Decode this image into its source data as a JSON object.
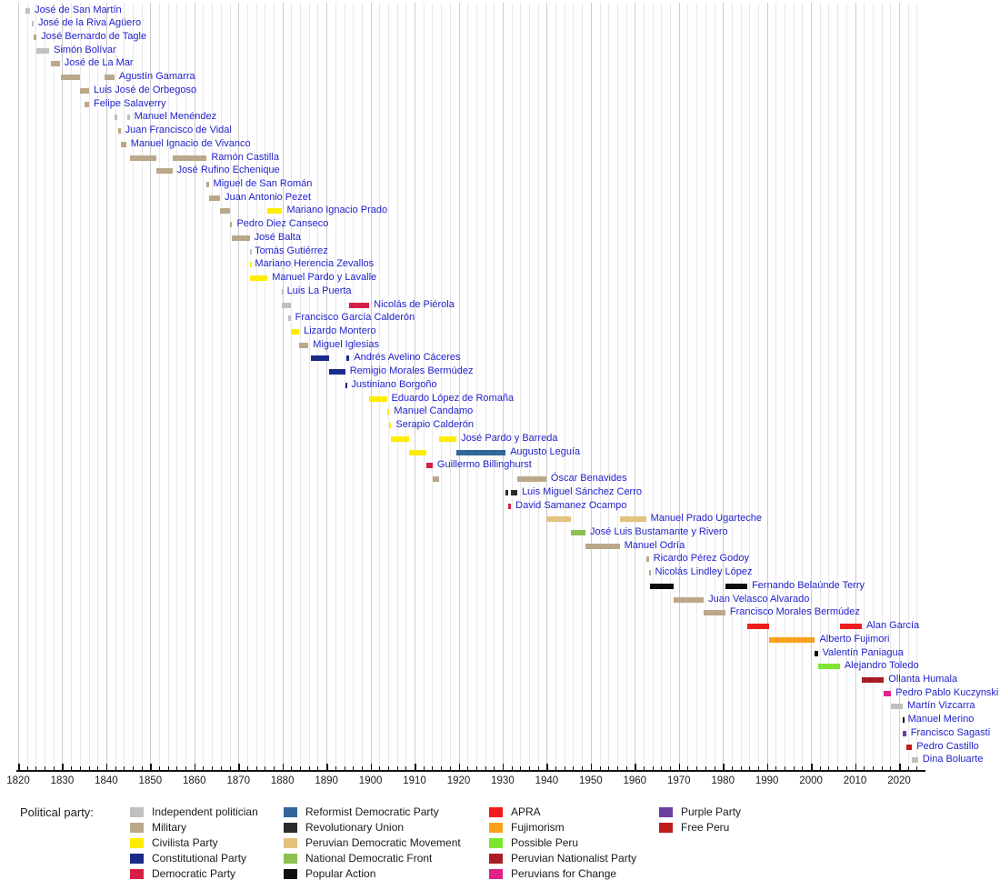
{
  "chart_data": {
    "type": "bar",
    "subtype": "timeline-gantt",
    "title": "",
    "axis": {
      "min_year": 1820,
      "max_year": 2026,
      "minor_tick_step": 2,
      "major_tick_step": 10,
      "decade_labels": [
        "1820",
        "1830",
        "1840",
        "1850",
        "1860",
        "1870",
        "1880",
        "1890",
        "1900",
        "1910",
        "1920",
        "1930",
        "1940",
        "1950",
        "1960",
        "1970",
        "1980",
        "1990",
        "2000",
        "2010",
        "2020"
      ],
      "grid": true
    },
    "label_color": "#2222cc",
    "parties": {
      "independent": {
        "label": "Independent politician",
        "color": "#C0C0C0"
      },
      "military": {
        "label": "Military",
        "color": "#BBA88A"
      },
      "civilista": {
        "label": "Civilista Party",
        "color": "#FFEC00"
      },
      "constitutional": {
        "label": "Constitutional Party",
        "color": "#1A2B8C"
      },
      "democratic": {
        "label": "Democratic Party",
        "color": "#D42047"
      },
      "reformist": {
        "label": "Reformist Democratic Party",
        "color": "#33669A"
      },
      "revolutionary_union": {
        "label": "Revolutionary Union",
        "color": "#2B2B2B"
      },
      "pdm": {
        "label": "Peruvian Democratic Movement",
        "color": "#E2C27E"
      },
      "ndf": {
        "label": "National Democratic Front",
        "color": "#8CC152"
      },
      "popular_action": {
        "label": "Popular Action",
        "color": "#0D0D0D"
      },
      "apra": {
        "label": "APRA",
        "color": "#EE1C1C"
      },
      "fujimorism": {
        "label": "Fujimorism",
        "color": "#F9A11B"
      },
      "possible_peru": {
        "label": "Possible Peru",
        "color": "#7DE52F"
      },
      "nationalist": {
        "label": "Peruvian Nationalist Party",
        "color": "#A81E24"
      },
      "peruvians_change": {
        "label": "Peruvians for Change",
        "color": "#E0218A"
      },
      "purple": {
        "label": "Purple Party",
        "color": "#6B3FA0"
      },
      "free_peru": {
        "label": "Free Peru",
        "color": "#BE1B1B"
      }
    },
    "legend": {
      "title": "Political party:",
      "columns": [
        [
          "independent",
          "military",
          "civilista",
          "constitutional",
          "democratic"
        ],
        [
          "reformist",
          "revolutionary_union",
          "pdm",
          "ndf",
          "popular_action"
        ],
        [
          "apra",
          "fujimorism",
          "possible_peru",
          "nationalist",
          "peruvians_change"
        ],
        [
          "purple",
          "free_peru"
        ]
      ]
    },
    "presidents": [
      {
        "name": "José de San Martín",
        "terms": [
          [
            1821.55,
            1822.72,
            "independent"
          ]
        ]
      },
      {
        "name": "José de la Riva Agüero",
        "terms": [
          [
            1823.15,
            1823.5,
            "independent"
          ]
        ]
      },
      {
        "name": "José Bernardo de Tagle",
        "terms": [
          [
            1823.6,
            1824.15,
            "military"
          ]
        ]
      },
      {
        "name": "Simón Bolívar",
        "terms": [
          [
            1824.1,
            1827.05,
            "independent"
          ]
        ]
      },
      {
        "name": "José de La Mar",
        "terms": [
          [
            1827.45,
            1829.45,
            "military"
          ]
        ]
      },
      {
        "name": "Agustín Gamarra",
        "terms": [
          [
            1829.65,
            1833.95,
            "military"
          ],
          [
            1839.6,
            1841.85,
            "military"
          ]
        ]
      },
      {
        "name": "Luis José de Orbegoso",
        "terms": [
          [
            1833.95,
            1836.1,
            "military"
          ]
        ]
      },
      {
        "name": "Felipe Salaverry",
        "terms": [
          [
            1835.15,
            1836.1,
            "military"
          ]
        ]
      },
      {
        "name": "Manuel Menéndez",
        "terms": [
          [
            1841.85,
            1842.6,
            "independent"
          ],
          [
            1844.75,
            1845.3,
            "independent"
          ]
        ]
      },
      {
        "name": "Juan Francisco de Vidal",
        "terms": [
          [
            1842.8,
            1843.25,
            "military"
          ]
        ]
      },
      {
        "name": "Manuel Ignacio de Vivanco",
        "terms": [
          [
            1843.25,
            1844.5,
            "military"
          ]
        ]
      },
      {
        "name": "Ramón Castilla",
        "terms": [
          [
            1845.3,
            1851.3,
            "military"
          ],
          [
            1855.0,
            1862.8,
            "military"
          ]
        ]
      },
      {
        "name": "José Rufino Echenique",
        "terms": [
          [
            1851.3,
            1855.0,
            "military"
          ]
        ]
      },
      {
        "name": "Miguel de San Román",
        "terms": [
          [
            1862.8,
            1863.25,
            "military"
          ]
        ]
      },
      {
        "name": "Juan Antonio Pezet",
        "terms": [
          [
            1863.3,
            1865.85,
            "military"
          ]
        ]
      },
      {
        "name": "Mariano Ignacio Prado",
        "terms": [
          [
            1865.9,
            1868.05,
            "military"
          ],
          [
            1876.6,
            1879.95,
            "civilista"
          ]
        ]
      },
      {
        "name": "Pedro Diez Canseco",
        "terms": [
          [
            1868.05,
            1868.6,
            "military"
          ]
        ]
      },
      {
        "name": "José Balta",
        "terms": [
          [
            1868.6,
            1872.55,
            "military"
          ]
        ]
      },
      {
        "name": "Tomás Gutiérrez",
        "terms": [
          [
            1872.55,
            1872.65,
            "independent"
          ]
        ]
      },
      {
        "name": "Mariano Herencia Zevallos",
        "terms": [
          [
            1872.55,
            1872.7,
            "civilista"
          ]
        ]
      },
      {
        "name": "Manuel Pardo y Lavalle",
        "terms": [
          [
            1872.6,
            1876.6,
            "civilista"
          ]
        ]
      },
      {
        "name": "Luis La Puerta",
        "terms": [
          [
            1879.85,
            1879.98,
            "independent"
          ]
        ]
      },
      {
        "name": "Nicolás de Piérola",
        "terms": [
          [
            1879.95,
            1881.9,
            "independent"
          ],
          [
            1895.2,
            1899.7,
            "democratic"
          ]
        ]
      },
      {
        "name": "Francisco García Calderón",
        "terms": [
          [
            1881.2,
            1881.85,
            "independent"
          ]
        ]
      },
      {
        "name": "Lizardo Montero",
        "terms": [
          [
            1881.9,
            1883.8,
            "civilista"
          ]
        ]
      },
      {
        "name": "Miguel Iglesias",
        "terms": [
          [
            1883.8,
            1885.9,
            "military"
          ]
        ]
      },
      {
        "name": "Andrés Avelino Cáceres",
        "terms": [
          [
            1886.4,
            1890.6,
            "constitutional"
          ],
          [
            1894.6,
            1895.2,
            "constitutional"
          ]
        ]
      },
      {
        "name": "Remigio Morales Bermúdez",
        "terms": [
          [
            1890.6,
            1894.25,
            "constitutional"
          ]
        ]
      },
      {
        "name": "Justiniano Borgoño",
        "terms": [
          [
            1894.25,
            1894.6,
            "constitutional"
          ]
        ]
      },
      {
        "name": "Eduardo López de Romaña",
        "terms": [
          [
            1899.7,
            1903.7,
            "civilista"
          ]
        ]
      },
      {
        "name": "Manuel Candamo",
        "terms": [
          [
            1903.7,
            1904.3,
            "civilista"
          ]
        ]
      },
      {
        "name": "Serapio Calderón",
        "terms": [
          [
            1904.3,
            1904.7,
            "civilista"
          ]
        ]
      },
      {
        "name": "José Pardo y Barreda",
        "terms": [
          [
            1904.7,
            1908.7,
            "civilista"
          ],
          [
            1915.6,
            1919.5,
            "civilista"
          ]
        ]
      },
      {
        "name": "Augusto Leguía",
        "terms": [
          [
            1908.7,
            1912.7,
            "civilista"
          ],
          [
            1919.5,
            1930.65,
            "reformist"
          ]
        ]
      },
      {
        "name": "Guillermo Billinghurst",
        "terms": [
          [
            1912.7,
            1914.1,
            "democratic"
          ]
        ]
      },
      {
        "name": "Óscar Benavides",
        "terms": [
          [
            1914.1,
            1915.6,
            "military"
          ],
          [
            1933.3,
            1939.9,
            "military"
          ]
        ]
      },
      {
        "name": "Luis Miguel Sánchez Cerro",
        "terms": [
          [
            1930.65,
            1931.2,
            "revolutionary_union"
          ],
          [
            1931.9,
            1933.3,
            "revolutionary_union"
          ]
        ]
      },
      {
        "name": "David Samanez Ocampo",
        "terms": [
          [
            1931.2,
            1931.9,
            "democratic"
          ]
        ]
      },
      {
        "name": "Manuel Prado Ugarteche",
        "terms": [
          [
            1939.9,
            1945.55,
            "pdm"
          ],
          [
            1956.55,
            1962.55,
            "pdm"
          ]
        ]
      },
      {
        "name": "José Luis Bustamante y Rivero",
        "terms": [
          [
            1945.55,
            1948.8,
            "ndf"
          ]
        ]
      },
      {
        "name": "Manuel Odría",
        "terms": [
          [
            1948.8,
            1956.55,
            "military"
          ]
        ]
      },
      {
        "name": "Ricardo Pérez Godoy",
        "terms": [
          [
            1962.55,
            1963.2,
            "military"
          ]
        ]
      },
      {
        "name": "Nicolás Lindley López",
        "terms": [
          [
            1963.2,
            1963.55,
            "military"
          ]
        ]
      },
      {
        "name": "Fernando Belaúnde Terry",
        "terms": [
          [
            1963.55,
            1968.75,
            "popular_action"
          ],
          [
            1980.55,
            1985.55,
            "popular_action"
          ]
        ]
      },
      {
        "name": "Juan Velasco Alvarado",
        "terms": [
          [
            1968.75,
            1975.65,
            "military"
          ]
        ]
      },
      {
        "name": "Francisco Morales Bermúdez",
        "terms": [
          [
            1975.65,
            1980.55,
            "military"
          ]
        ]
      },
      {
        "name": "Alan García",
        "terms": [
          [
            1985.55,
            1990.55,
            "apra"
          ],
          [
            2006.55,
            2011.55,
            "apra"
          ]
        ]
      },
      {
        "name": "Alberto Fujimori",
        "terms": [
          [
            1990.55,
            2000.9,
            "fujimorism"
          ]
        ]
      },
      {
        "name": "Valentín Paniagua",
        "terms": [
          [
            2000.9,
            2001.55,
            "popular_action"
          ]
        ]
      },
      {
        "name": "Alejandro Toledo",
        "terms": [
          [
            2001.55,
            2006.55,
            "possible_peru"
          ]
        ]
      },
      {
        "name": "Ollanta Humala",
        "terms": [
          [
            2011.55,
            2016.55,
            "nationalist"
          ]
        ]
      },
      {
        "name": "Pedro Pablo Kuczynski",
        "terms": [
          [
            2016.55,
            2018.2,
            "peruvians_change"
          ]
        ]
      },
      {
        "name": "Martín Vizcarra",
        "terms": [
          [
            2018.2,
            2020.85,
            "independent"
          ]
        ]
      },
      {
        "name": "Manuel Merino",
        "terms": [
          [
            2020.85,
            2020.95,
            "popular_action"
          ]
        ]
      },
      {
        "name": "Francisco Sagasti",
        "terms": [
          [
            2020.9,
            2021.6,
            "purple"
          ]
        ]
      },
      {
        "name": "Pedro Castillo",
        "terms": [
          [
            2021.6,
            2022.95,
            "free_peru"
          ]
        ]
      },
      {
        "name": "Dina Boluarte",
        "terms": [
          [
            2022.95,
            2024.3,
            "independent"
          ]
        ]
      }
    ]
  }
}
